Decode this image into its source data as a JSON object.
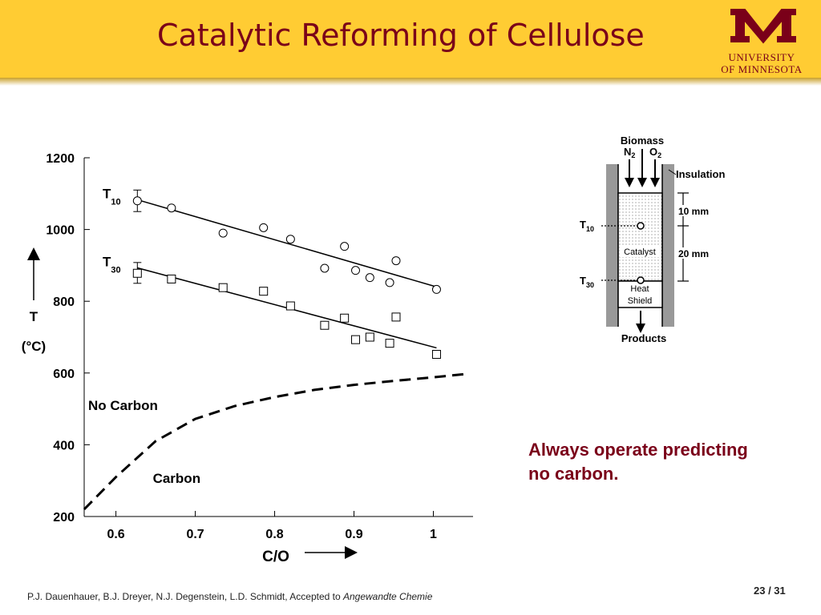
{
  "slide": {
    "title": "Catalytic Reforming of Cellulose",
    "university_line1": "UNIVERSITY",
    "university_line2": "OF MINNESOTA",
    "callout_line1": "Always operate predicting",
    "callout_line2": "no carbon.",
    "citation": "P.J. Dauenhauer, B.J. Dreyer, N.J. Degenstein, L.D. Schmidt, Accepted to ",
    "citation_journal": "Angewandte Chemie",
    "page": "23 / 31",
    "colors": {
      "header": "#FFCC33",
      "maroon": "#7A0019"
    }
  },
  "chart_data": {
    "type": "scatter",
    "xlabel": "C/O",
    "ylabel_main": "T",
    "ylabel_unit": "(°C)",
    "xlim": [
      0.56,
      1.05
    ],
    "ylim": [
      200,
      1200
    ],
    "xticks": [
      0.6,
      0.7,
      0.8,
      0.9,
      1
    ],
    "xtick_labels": [
      "0.6",
      "0.7",
      "0.8",
      "0.9",
      "1"
    ],
    "yticks": [
      200,
      400,
      600,
      800,
      1000,
      1200
    ],
    "ytick_labels": [
      "200",
      "400",
      "600",
      "800",
      "1000",
      "1200"
    ],
    "grid": false,
    "series": [
      {
        "name": "T10",
        "label_main": "T",
        "label_sub": "10",
        "marker": "circle",
        "points": [
          [
            0.627,
            1080
          ],
          [
            0.67,
            1060
          ],
          [
            0.735,
            990
          ],
          [
            0.786,
            1005
          ],
          [
            0.82,
            973
          ],
          [
            0.863,
            892
          ],
          [
            0.888,
            953
          ],
          [
            0.902,
            886
          ],
          [
            0.92,
            866
          ],
          [
            0.945,
            852
          ],
          [
            0.953,
            913
          ],
          [
            1.004,
            833
          ]
        ],
        "error_bar": {
          "x": 0.627,
          "low": 1050,
          "high": 1110
        },
        "fit": [
          [
            0.627,
            1083
          ],
          [
            1.004,
            840
          ]
        ]
      },
      {
        "name": "T30",
        "label_main": "T",
        "label_sub": "30",
        "marker": "square",
        "points": [
          [
            0.627,
            878
          ],
          [
            0.67,
            862
          ],
          [
            0.735,
            838
          ],
          [
            0.786,
            828
          ],
          [
            0.82,
            787
          ],
          [
            0.863,
            733
          ],
          [
            0.888,
            753
          ],
          [
            0.902,
            693
          ],
          [
            0.92,
            700
          ],
          [
            0.945,
            683
          ],
          [
            0.953,
            756
          ],
          [
            1.004,
            652
          ]
        ],
        "error_bar": {
          "x": 0.627,
          "low": 850,
          "high": 908
        },
        "fit": [
          [
            0.627,
            893
          ],
          [
            1.004,
            670
          ]
        ]
      }
    ],
    "boundary": {
      "style": "dashed",
      "points": [
        [
          0.56,
          220
        ],
        [
          0.6,
          310
        ],
        [
          0.65,
          410
        ],
        [
          0.7,
          472
        ],
        [
          0.75,
          508
        ],
        [
          0.8,
          533
        ],
        [
          0.85,
          553
        ],
        [
          0.9,
          567
        ],
        [
          0.95,
          578
        ],
        [
          1.0,
          588
        ],
        [
          1.04,
          597
        ]
      ]
    },
    "annotations": [
      {
        "text": "No Carbon",
        "x": 0.56,
        "y": 510
      },
      {
        "text": "Carbon",
        "x": 0.6,
        "y": 307
      }
    ]
  },
  "diagram": {
    "biomass": "Biomass",
    "n2_main": "N",
    "n2_sub": "2",
    "o2_main": "O",
    "o2_sub": "2",
    "insulation": "Insulation",
    "t10_main": "T",
    "t10_sub": "10",
    "t30_main": "T",
    "t30_sub": "30",
    "catalyst": "Catalyst",
    "heat": "Heat",
    "shield": "Shield",
    "dim_10": "10 mm",
    "dim_20": "20 mm",
    "products": "Products"
  }
}
